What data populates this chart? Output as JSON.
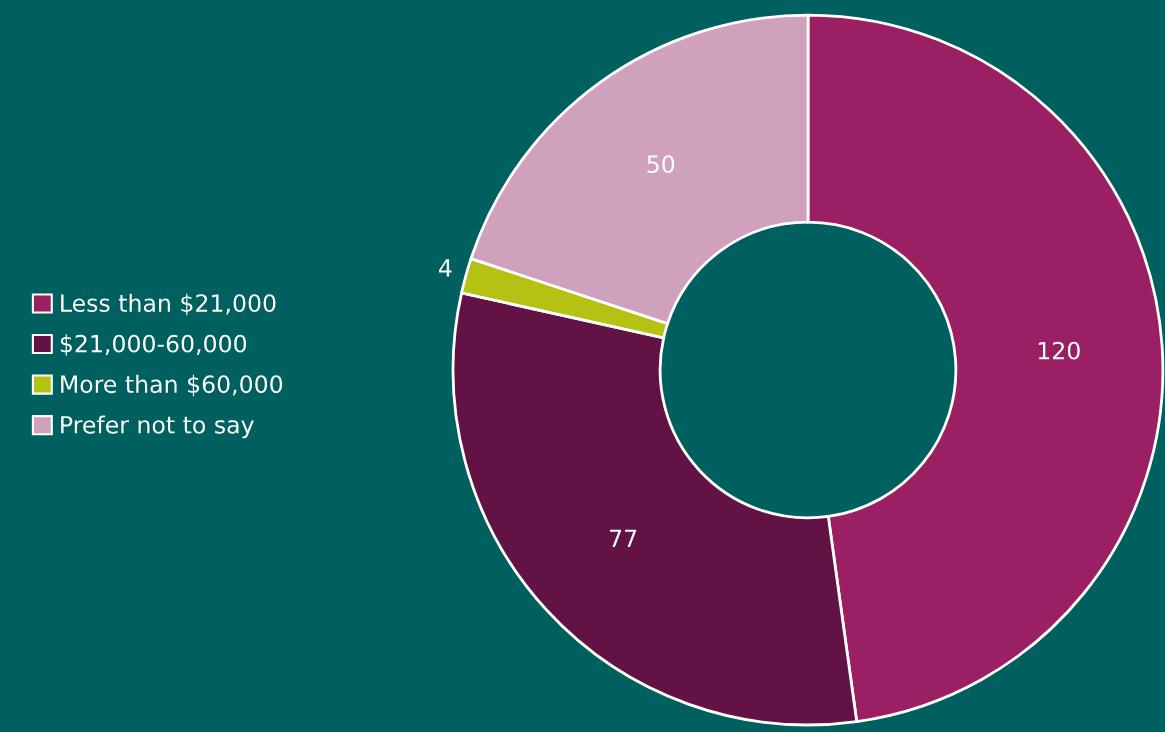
{
  "chart_data": {
    "type": "donut",
    "categories": [
      "Less than $21,000",
      "$21,000-60,000",
      "More than $60,000",
      "Prefer not to say"
    ],
    "values": [
      120,
      77,
      4,
      50
    ],
    "colors": [
      "#9b1f63",
      "#621244",
      "#b5c113",
      "#d0a1bc"
    ],
    "data_labels": true,
    "legend": "left"
  }
}
